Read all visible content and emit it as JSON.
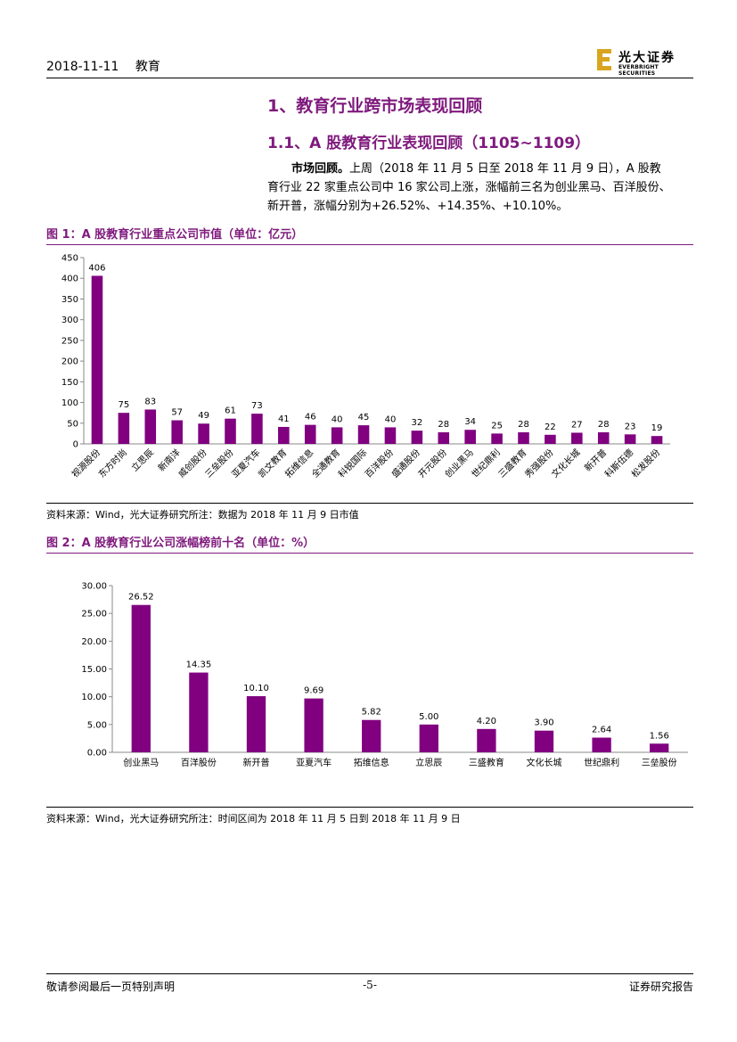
{
  "header": {
    "date": "2018-11-11",
    "category": "教育"
  },
  "logo": {
    "cn": "光大证券",
    "en": "EVERBRIGHT SECURITIES",
    "colors": {
      "gold": "#d9a520",
      "dark": "#1a1a1a"
    }
  },
  "section": {
    "h1": "1、教育行业跨市场表现回顾",
    "h2": "1.1、A 股教育行业表现回顾（1105~1109）"
  },
  "paragraph": {
    "lead": "市场回顾。",
    "line1": "上周（2018 年 11 月 5 日至 2018 年 11 月 9 日），A 股教",
    "line2": "育行业 22 家重点公司中 16 家公司上涨，涨幅前三名为创业黑马、百洋股份、",
    "line3": "新开普，涨幅分别为+26.52%、+14.35%、+10.10%。"
  },
  "colors": {
    "accent": "#7f1a7d",
    "bar": "#800080"
  },
  "figure1": {
    "title": "图 1：A 股教育行业重点公司市值（单位：亿元）",
    "source": "资料来源：Wind，光大证券研究所注：数据为 2018 年 11 月 9 日市值"
  },
  "figure2": {
    "title": "图 2：A 股教育行业公司涨幅榜前十名（单位：%）",
    "source": "资料来源：Wind，光大证券研究所注：时间区间为 2018 年 11 月 5 日到 2018 年 11 月 9 日"
  },
  "chart_data": [
    {
      "type": "bar",
      "categories": [
        "视源股份",
        "东方时尚",
        "立思辰",
        "新南洋",
        "威创股份",
        "三垒股份",
        "亚夏汽车",
        "凯文教育",
        "拓维信息",
        "全通教育",
        "科锐国际",
        "百洋股份",
        "盛通股份",
        "开元股份",
        "创业黑马",
        "世纪鼎利",
        "三盛教育",
        "秀强股份",
        "文化长城",
        "新开普",
        "科斯伍德",
        "松发股份"
      ],
      "values": [
        406,
        75,
        83,
        57,
        49,
        61,
        73,
        41,
        46,
        40,
        45,
        40,
        32,
        28,
        34,
        25,
        28,
        22,
        27,
        28,
        23,
        19
      ],
      "ylim": [
        0,
        450
      ],
      "yticks": [
        "0",
        "50",
        "100",
        "150",
        "200",
        "250",
        "300",
        "350",
        "400",
        "450"
      ],
      "grid": false,
      "legend": "none"
    },
    {
      "type": "bar",
      "categories": [
        "创业黑马",
        "百洋股份",
        "新开普",
        "亚夏汽车",
        "拓维信息",
        "立思辰",
        "三盛教育",
        "文化长城",
        "世纪鼎利",
        "三垒股份"
      ],
      "values": [
        26.52,
        14.35,
        10.1,
        9.69,
        5.82,
        5.0,
        4.2,
        3.9,
        2.64,
        1.56
      ],
      "value_labels": [
        "26.52",
        "14.35",
        "10.10",
        "9.69",
        "5.82",
        "5.00",
        "4.20",
        "3.90",
        "2.64",
        "1.56"
      ],
      "ylim": [
        0,
        30
      ],
      "yticks": [
        "0.00",
        "5.00",
        "10.00",
        "15.00",
        "20.00",
        "25.00",
        "30.00"
      ],
      "grid": false,
      "legend": "none"
    }
  ],
  "footer": {
    "left": "敬请参阅最后一页特别声明",
    "page": "-5-",
    "right": "证券研究报告"
  }
}
